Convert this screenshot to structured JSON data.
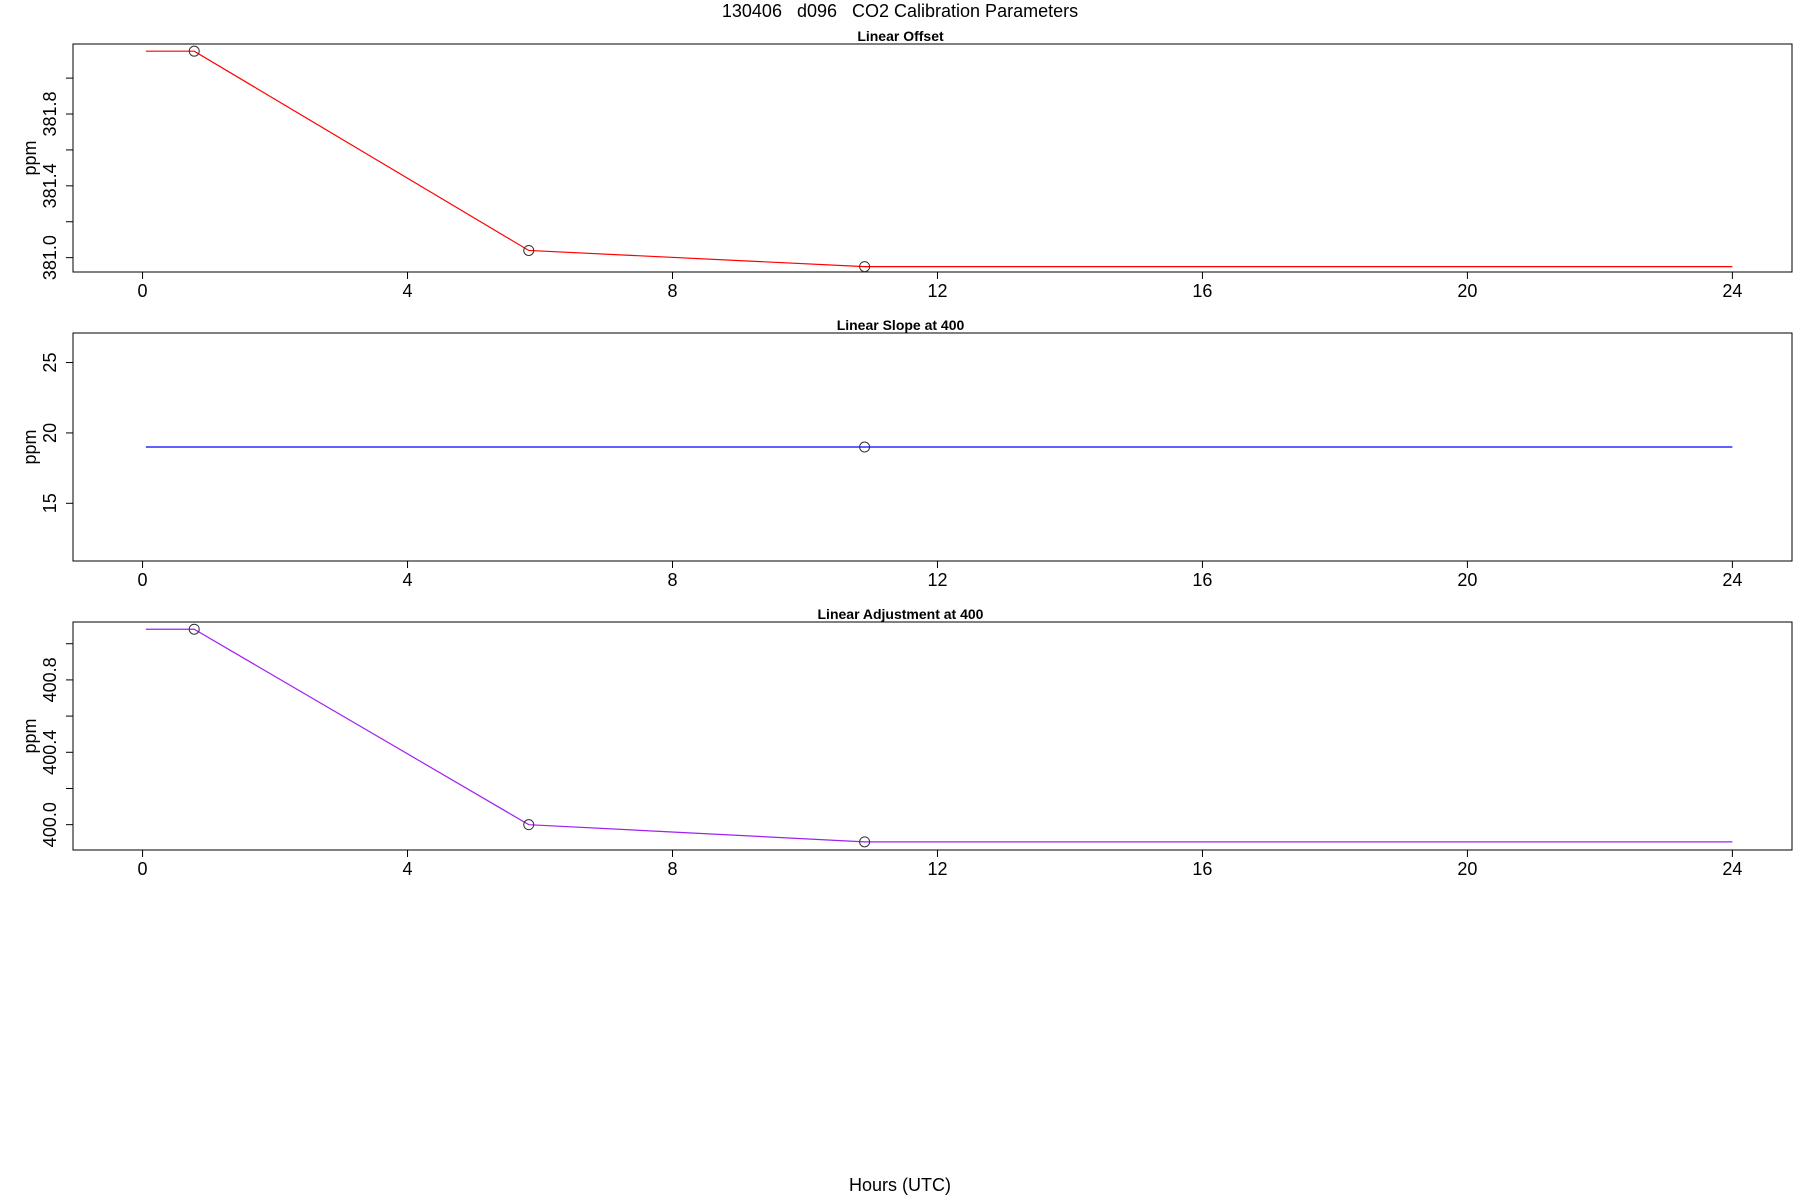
{
  "figure": {
    "title": "130406   d096   CO2 Calibration Parameters",
    "xlabel": "Hours (UTC)"
  },
  "chart_data": [
    {
      "type": "line",
      "title": "Linear Offset",
      "xlabel": "",
      "ylabel": "ppm",
      "xlim": [
        -1.05,
        24.9
      ],
      "ylim": [
        380.92,
        382.19
      ],
      "xticks": [
        0,
        4,
        8,
        12,
        16,
        20,
        24
      ],
      "yticks": [
        381.0,
        381.2,
        381.4,
        381.6,
        381.8,
        382.0
      ],
      "ytick_labels": [
        "381.0",
        "",
        "381.4",
        "",
        "381.8",
        ""
      ],
      "grid": false,
      "series": [
        {
          "color": "#ff0000",
          "x": [
            0.05,
            0.78,
            5.83,
            10.9,
            24.0
          ],
          "y": [
            382.15,
            382.15,
            381.04,
            380.95,
            380.95
          ],
          "markers": [
            {
              "x": 0.78,
              "y": 382.15
            },
            {
              "x": 5.83,
              "y": 381.04
            },
            {
              "x": 10.9,
              "y": 380.95
            }
          ]
        }
      ]
    },
    {
      "type": "line",
      "title": "Linear Slope at 400",
      "xlabel": "",
      "ylabel": "ppm",
      "xlim": [
        -1.05,
        24.9
      ],
      "ylim": [
        10.9,
        27.1
      ],
      "xticks": [
        0,
        4,
        8,
        12,
        16,
        20,
        24
      ],
      "yticks": [
        15,
        20,
        25
      ],
      "ytick_labels": [
        "15",
        "20",
        "25"
      ],
      "grid": false,
      "series": [
        {
          "color": "#0000ff",
          "x": [
            0.05,
            24.0
          ],
          "y": [
            19.0,
            19.0
          ],
          "markers": [
            {
              "x": 10.9,
              "y": 19.0
            }
          ]
        }
      ]
    },
    {
      "type": "line",
      "title": "Linear Adjustment at 400",
      "xlabel": "",
      "ylabel": "ppm",
      "xlim": [
        -1.05,
        24.9
      ],
      "ylim": [
        399.86,
        401.12
      ],
      "xticks": [
        0,
        4,
        8,
        12,
        16,
        20,
        24
      ],
      "yticks": [
        400.0,
        400.2,
        400.4,
        400.6,
        400.8,
        401.0
      ],
      "ytick_labels": [
        "400.0",
        "",
        "400.4",
        "",
        "400.8",
        ""
      ],
      "grid": false,
      "series": [
        {
          "color": "#a020f0",
          "x": [
            0.05,
            0.78,
            5.83,
            10.9,
            24.0
          ],
          "y": [
            401.08,
            401.08,
            400.0,
            399.905,
            399.905
          ],
          "markers": [
            {
              "x": 0.78,
              "y": 401.08
            },
            {
              "x": 5.83,
              "y": 400.0
            },
            {
              "x": 10.9,
              "y": 399.905
            }
          ]
        }
      ]
    }
  ]
}
